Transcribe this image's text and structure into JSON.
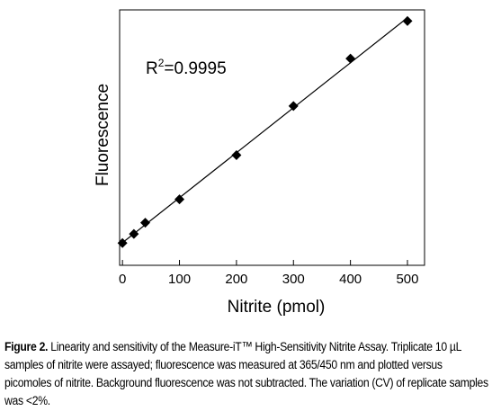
{
  "chart_data": {
    "type": "scatter",
    "x": [
      0,
      20,
      40,
      100,
      200,
      300,
      400,
      500
    ],
    "y": [
      0.0,
      0.041,
      0.092,
      0.197,
      0.396,
      0.617,
      0.831,
      1.0
    ],
    "fit_line": true,
    "xlim": [
      -5,
      530
    ],
    "ylim": [
      -0.1,
      1.05
    ],
    "xticks": [
      0,
      100,
      200,
      300,
      400,
      500
    ],
    "xtick_labels": [
      "0",
      "100",
      "200",
      "300",
      "400",
      "500"
    ],
    "xlabel": "Nitrite (pmol)",
    "ylabel": "Fluorescence",
    "annotation": {
      "r_prefix": "R",
      "r_sup": "2",
      "r_value": "=0.9995"
    },
    "marker": "diamond",
    "marker_color": "#000000",
    "grid": false
  },
  "caption": {
    "label": "Figure 2.",
    "text": " Linearity and sensitivity of the Measure-iT™ High-Sensitivity Nitrite Assay. Triplicate 10 µL samples of nitrite were assayed; fluorescence was measured at 365/450 nm and plotted versus picomoles of nitrite. Background fluorescence was not subtracted. The variation (CV) of replicate samples was <2%."
  }
}
